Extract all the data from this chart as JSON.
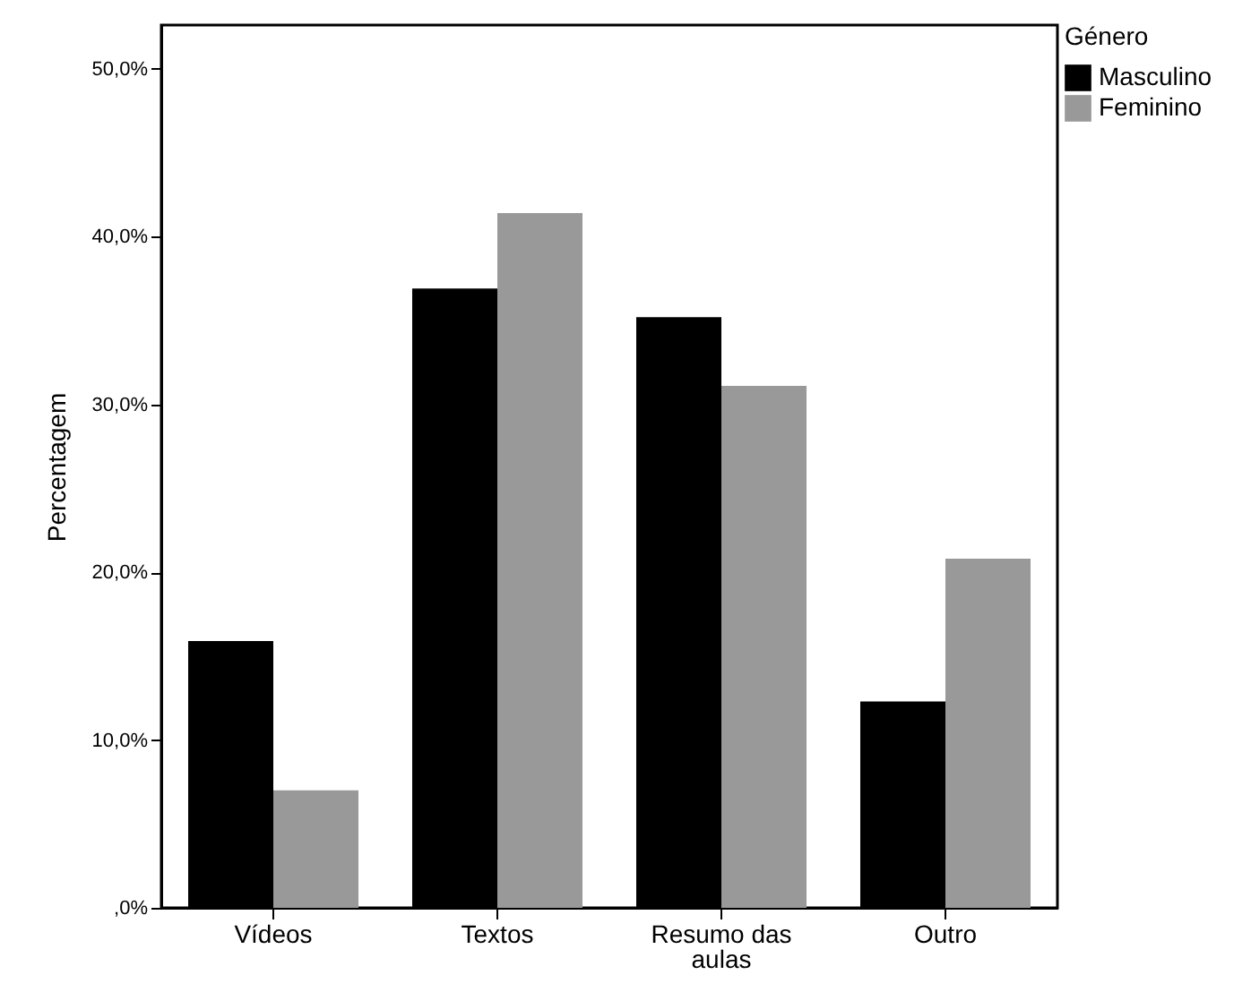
{
  "chart_data": {
    "type": "bar",
    "ylabel": "Percentagem",
    "legend_title": "Género",
    "categories": [
      "Vídeos",
      "Textos",
      "Resumo das aulas",
      "Outro"
    ],
    "series": [
      {
        "name": "Masculino",
        "color": "#000000",
        "values": [
          15.9,
          36.9,
          35.2,
          12.3
        ]
      },
      {
        "name": "Feminino",
        "color": "#999999",
        "values": [
          7.0,
          41.4,
          31.1,
          20.8
        ]
      }
    ],
    "ylim": [
      0,
      52.6
    ],
    "yticks": [
      {
        "value": 0,
        "label": ",0%"
      },
      {
        "value": 10,
        "label": "10,0%"
      },
      {
        "value": 20,
        "label": "20,0%"
      },
      {
        "value": 30,
        "label": "30,0%"
      },
      {
        "value": 40,
        "label": "40,0%"
      },
      {
        "value": 50,
        "label": "50,0%"
      }
    ],
    "legend": "top right",
    "grid": false
  }
}
